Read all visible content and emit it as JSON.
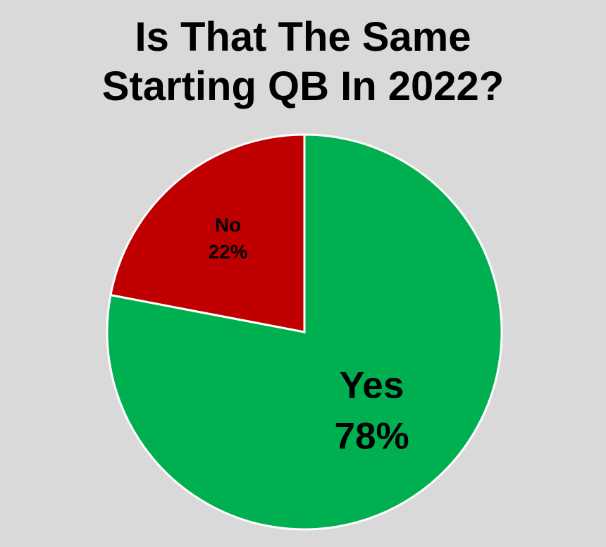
{
  "chart_data": {
    "type": "pie",
    "title": "Is That The Same Starting QB In 2022?",
    "categories": [
      "Yes",
      "No"
    ],
    "values": [
      78,
      22
    ],
    "value_labels": [
      "78%",
      "22%"
    ],
    "colors": [
      "#00b050",
      "#c00000"
    ],
    "start_angle": 0,
    "direction": "clockwise"
  }
}
